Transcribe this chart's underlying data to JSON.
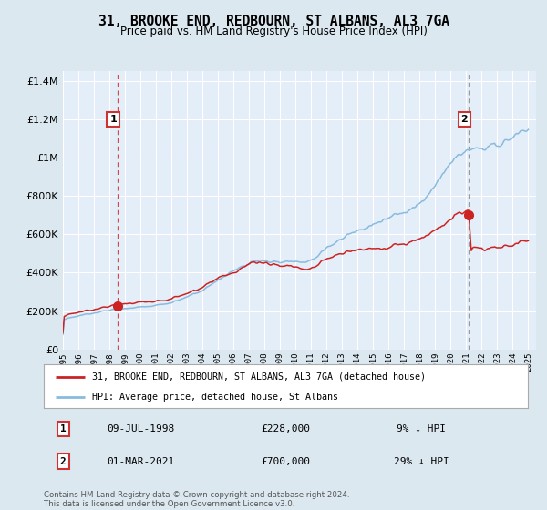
{
  "title": "31, BROOKE END, REDBOURN, ST ALBANS, AL3 7GA",
  "subtitle": "Price paid vs. HM Land Registry's House Price Index (HPI)",
  "hpi_label": "HPI: Average price, detached house, St Albans",
  "property_label": "31, BROOKE END, REDBOURN, ST ALBANS, AL3 7GA (detached house)",
  "sale1_date": "09-JUL-1998",
  "sale1_price": 228000,
  "sale1_note": "9% ↓ HPI",
  "sale2_date": "01-MAR-2021",
  "sale2_price": 700000,
  "sale2_note": "29% ↓ HPI",
  "sale1_year": 1998.54,
  "sale2_year": 2021.17,
  "x_start_year": 1995,
  "x_end_year": 2025,
  "ylim_min": 0,
  "ylim_max": 1450000,
  "bg_color": "#dce8f0",
  "plot_bg_color": "#e4eef8",
  "grid_color": "#ffffff",
  "hpi_line_color": "#88bbdd",
  "property_line_color": "#cc2222",
  "vline1_color": "#dd4444",
  "vline2_color": "#999999",
  "marker_color": "#cc2222",
  "box_edge_color": "#cc3333",
  "legend_border_color": "#aaaaaa",
  "footnote_color": "#555555",
  "footnote": "Contains HM Land Registry data © Crown copyright and database right 2024.\nThis data is licensed under the Open Government Licence v3.0."
}
